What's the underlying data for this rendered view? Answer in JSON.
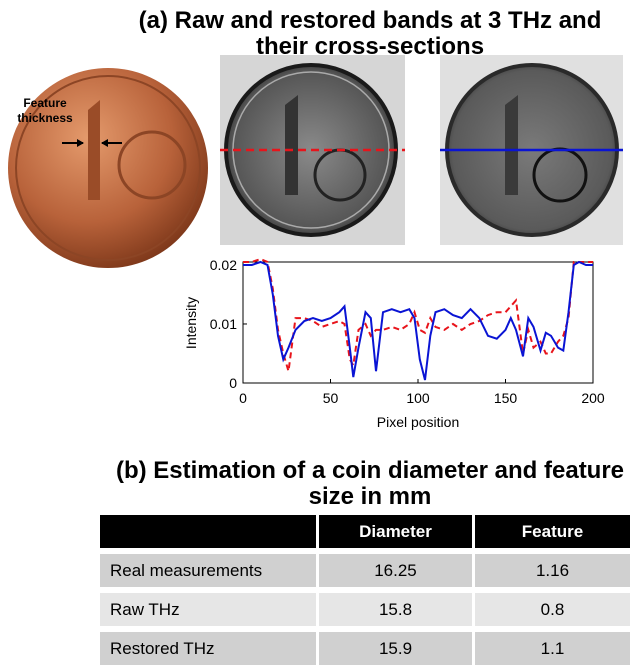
{
  "title_a": "(a) Raw and restored bands at 3 THz and their cross-sections",
  "coin_annotation": "Feature thickness",
  "chart_data": {
    "type": "line",
    "xlabel": "Pixel position",
    "ylabel": "Intensity",
    "xlim": [
      0,
      200
    ],
    "xticks": [
      0,
      50,
      100,
      150,
      200
    ],
    "ylim": [
      0,
      0.0205
    ],
    "yticks": [
      0,
      0.01,
      0.02
    ],
    "x": [
      0,
      5,
      10,
      14,
      17,
      20,
      23,
      26,
      30,
      35,
      40,
      45,
      50,
      55,
      58,
      61,
      63,
      66,
      70,
      73,
      76,
      80,
      85,
      90,
      95,
      98,
      101,
      104,
      107,
      110,
      115,
      120,
      125,
      130,
      135,
      140,
      145,
      150,
      153,
      156,
      160,
      163,
      166,
      170,
      173,
      176,
      180,
      183,
      186,
      189,
      192,
      196,
      200
    ],
    "series": [
      {
        "color": "#e8141b",
        "dashed": true,
        "values": [
          0.0205,
          0.0205,
          0.021,
          0.0205,
          0.016,
          0.009,
          0.005,
          0.002,
          0.011,
          0.011,
          0.0105,
          0.0095,
          0.01,
          0.0105,
          0.01,
          0.004,
          0.003,
          0.009,
          0.01,
          0.008,
          0.009,
          0.009,
          0.0095,
          0.009,
          0.01,
          0.012,
          0.009,
          0.0085,
          0.011,
          0.0095,
          0.009,
          0.01,
          0.009,
          0.01,
          0.0105,
          0.0115,
          0.012,
          0.012,
          0.013,
          0.014,
          0.005,
          0.009,
          0.006,
          0.007,
          0.005,
          0.005,
          0.007,
          0.008,
          0.011,
          0.0205,
          0.0205,
          0.0205,
          0.0205
        ]
      },
      {
        "color": "#0a14d4",
        "dashed": false,
        "values": [
          0.02,
          0.02,
          0.0205,
          0.02,
          0.015,
          0.008,
          0.004,
          0.006,
          0.009,
          0.0105,
          0.011,
          0.0105,
          0.011,
          0.012,
          0.013,
          0.006,
          0.001,
          0.006,
          0.012,
          0.011,
          0.002,
          0.012,
          0.0125,
          0.012,
          0.0125,
          0.011,
          0.004,
          0.0005,
          0.008,
          0.012,
          0.0125,
          0.0115,
          0.011,
          0.0125,
          0.011,
          0.008,
          0.0075,
          0.009,
          0.011,
          0.009,
          0.0045,
          0.011,
          0.0095,
          0.0055,
          0.0085,
          0.008,
          0.006,
          0.0055,
          0.012,
          0.02,
          0.0205,
          0.02,
          0.02
        ]
      }
    ]
  },
  "title_b": "(b) Estimation of a coin diameter and feature size in mm",
  "table": {
    "header": [
      "Diameter",
      "Feature"
    ],
    "rows": [
      [
        "Real measurements",
        "16.25",
        "1.16"
      ],
      [
        "Raw THz",
        "15.8",
        "0.8"
      ],
      [
        "Restored THz",
        "15.9",
        "1.1"
      ]
    ]
  }
}
